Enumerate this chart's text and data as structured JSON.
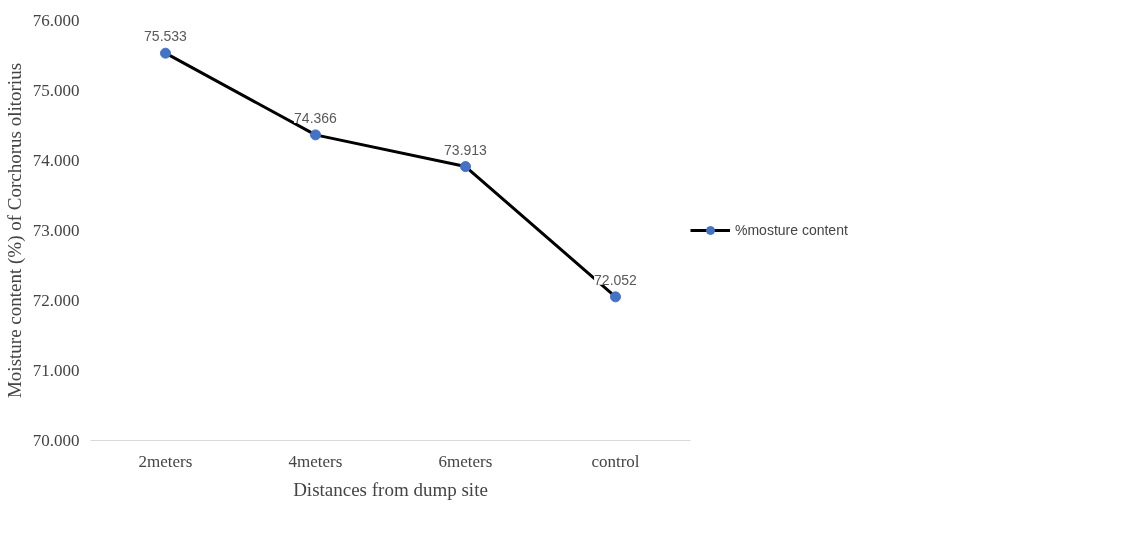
{
  "chart_data": {
    "type": "line",
    "xlabel": "Distances from dump site",
    "ylabel": "Moisture content (%) of Corchorus olitorius",
    "categories": [
      "2meters",
      "4meters",
      "6meters",
      "control"
    ],
    "series": [
      {
        "name": "%mosture content",
        "color": "#000000",
        "colors": [
          "#4472c4",
          "#4472c4",
          "#4472c4",
          "#4472c4"
        ],
        "values": [
          75.533,
          74.366,
          73.913,
          72.052
        ]
      }
    ],
    "ylim": [
      70,
      76
    ],
    "yticks": [
      {
        "value": 70,
        "label": "70.000"
      },
      {
        "value": 71,
        "label": "71.000"
      },
      {
        "value": 72,
        "label": "72.000"
      },
      {
        "value": 73,
        "label": "73.000"
      },
      {
        "value": 74,
        "label": "74.000"
      },
      {
        "value": 75,
        "label": "75.000"
      },
      {
        "value": 76,
        "label": "76.000"
      }
    ],
    "grid": false,
    "legend": "right",
    "marker": "circle",
    "line_style": "solid",
    "data_labels": true
  }
}
